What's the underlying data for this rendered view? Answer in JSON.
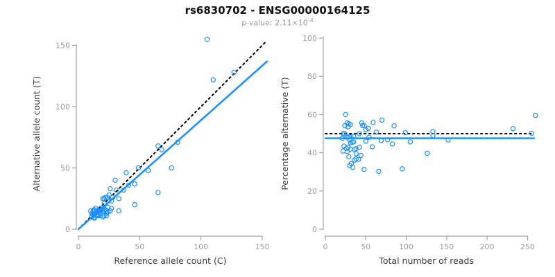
{
  "header": {
    "title": "rs6830702 - ENSG00000164125",
    "pvalue_prefix": "p-value: 2.11×10",
    "pvalue_exponent": "-4"
  },
  "colors": {
    "accent": "#1E90FF",
    "identity_line": "#000000",
    "axis_line": "#919191",
    "tick_label": "#9b9b9b",
    "axis_title": "#3d3d3d",
    "title": "#111111",
    "subtitle": "#9b9b9b"
  },
  "chart_data": [
    {
      "type": "scatter",
      "name": "allele-counts-scatter",
      "xlabel": "Reference allele count (C)",
      "ylabel": "Alternative allele count (T)",
      "xlim": [
        0,
        154
      ],
      "ylim": [
        0,
        156
      ],
      "xticks": [
        0,
        50,
        100,
        150
      ],
      "yticks": [
        0,
        50,
        100,
        150
      ],
      "grid": false,
      "marker": "open-circle",
      "points": [
        [
          10,
          15
        ],
        [
          12,
          15
        ],
        [
          11,
          13
        ],
        [
          13,
          15
        ],
        [
          14,
          17
        ],
        [
          11,
          10
        ],
        [
          11,
          11
        ],
        [
          13,
          10
        ],
        [
          15,
          11
        ],
        [
          16,
          12
        ],
        [
          13,
          9
        ],
        [
          16,
          11
        ],
        [
          18,
          11
        ],
        [
          23,
          15
        ],
        [
          18,
          15
        ],
        [
          23,
          13
        ],
        [
          26,
          15
        ],
        [
          21,
          21
        ],
        [
          20,
          10
        ],
        [
          23,
          11
        ],
        [
          22,
          16
        ],
        [
          24,
          18
        ],
        [
          27,
          17
        ],
        [
          25,
          28
        ],
        [
          24,
          26
        ],
        [
          28,
          26
        ],
        [
          27,
          23
        ],
        [
          20,
          25
        ],
        [
          21,
          25
        ],
        [
          33,
          25
        ],
        [
          31,
          32
        ],
        [
          33,
          15
        ],
        [
          30,
          40
        ],
        [
          37,
          32
        ],
        [
          39,
          46
        ],
        [
          41,
          36
        ],
        [
          46,
          37
        ],
        [
          46,
          20
        ],
        [
          49,
          50
        ],
        [
          57,
          48
        ],
        [
          65,
          30
        ],
        [
          65,
          68
        ],
        [
          68,
          65
        ],
        [
          81,
          71
        ],
        [
          76,
          50
        ],
        [
          110,
          122
        ],
        [
          127,
          128
        ],
        [
          105,
          155
        ],
        [
          12,
          12
        ],
        [
          14,
          13
        ],
        [
          16,
          15
        ],
        [
          17,
          14
        ],
        [
          19,
          16
        ],
        [
          15,
          14
        ],
        [
          18,
          17
        ],
        [
          22,
          26
        ],
        [
          26,
          33
        ],
        [
          13,
          16
        ],
        [
          18,
          13
        ],
        [
          21,
          15
        ],
        [
          24,
          14
        ],
        [
          21,
          11
        ],
        [
          16,
          14
        ]
      ],
      "lines": [
        {
          "name": "identity-line",
          "style": "dotted",
          "color": "#000000",
          "x1": 0,
          "y1": 0,
          "x2": 154,
          "y2": 154
        },
        {
          "name": "fit-line",
          "style": "solid",
          "color": "#1E90FF",
          "x1": 0,
          "y1": 0,
          "x2": 154,
          "y2": 137
        }
      ]
    },
    {
      "type": "scatter",
      "name": "percentage-vs-reads-scatter",
      "xlabel": "Total number of reads",
      "ylabel": "Percentage alternative (T)",
      "xlim": [
        0,
        260
      ],
      "ylim": [
        0,
        100
      ],
      "xticks": [
        0,
        50,
        100,
        150,
        200,
        250
      ],
      "yticks": [
        0,
        20,
        40,
        60,
        80,
        100
      ],
      "grid": false,
      "marker": "open-circle",
      "points": [
        [
          25,
          60.0
        ],
        [
          27,
          55.6
        ],
        [
          24,
          54.2
        ],
        [
          28,
          53.6
        ],
        [
          31,
          54.8
        ],
        [
          21,
          47.6
        ],
        [
          22,
          50.0
        ],
        [
          23,
          43.5
        ],
        [
          26,
          42.3
        ],
        [
          28,
          42.9
        ],
        [
          22,
          40.9
        ],
        [
          27,
          40.7
        ],
        [
          29,
          37.9
        ],
        [
          38,
          39.5
        ],
        [
          33,
          45.5
        ],
        [
          36,
          36.1
        ],
        [
          41,
          36.6
        ],
        [
          42,
          50.0
        ],
        [
          30,
          33.3
        ],
        [
          34,
          32.4
        ],
        [
          38,
          42.1
        ],
        [
          42,
          42.9
        ],
        [
          44,
          38.6
        ],
        [
          53,
          52.8
        ],
        [
          50,
          52.0
        ],
        [
          54,
          48.1
        ],
        [
          50,
          46.0
        ],
        [
          45,
          55.6
        ],
        [
          46,
          54.3
        ],
        [
          58,
          43.1
        ],
        [
          63,
          50.8
        ],
        [
          48,
          31.3
        ],
        [
          70,
          57.1
        ],
        [
          69,
          46.4
        ],
        [
          85,
          54.1
        ],
        [
          77,
          46.8
        ],
        [
          83,
          44.6
        ],
        [
          66,
          30.3
        ],
        [
          99,
          50.5
        ],
        [
          105,
          45.7
        ],
        [
          95,
          31.6
        ],
        [
          133,
          51.1
        ],
        [
          133,
          48.9
        ],
        [
          152,
          46.7
        ],
        [
          126,
          39.7
        ],
        [
          232,
          52.6
        ],
        [
          255,
          50.2
        ],
        [
          260,
          59.6
        ],
        [
          24,
          50.0
        ],
        [
          27,
          48.1
        ],
        [
          31,
          48.4
        ],
        [
          31,
          45.2
        ],
        [
          35,
          45.7
        ],
        [
          29,
          48.3
        ],
        [
          35,
          48.6
        ],
        [
          48,
          54.2
        ],
        [
          59,
          55.9
        ],
        [
          29,
          55.2
        ],
        [
          31,
          41.9
        ],
        [
          36,
          41.7
        ],
        [
          38,
          36.8
        ],
        [
          32,
          34.4
        ],
        [
          30,
          46.7
        ]
      ],
      "lines": [
        {
          "name": "expected-50pct-line",
          "style": "dotted",
          "color": "#000000",
          "x1": 0,
          "y1": 50,
          "x2": 256,
          "y2": 50
        },
        {
          "name": "fit-line",
          "style": "solid",
          "color": "#1E90FF",
          "x1": 0,
          "y1": 47.6,
          "x2": 258,
          "y2": 47.6
        }
      ]
    }
  ]
}
